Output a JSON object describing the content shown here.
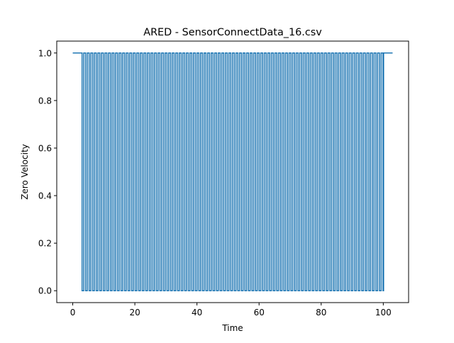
{
  "chart_data": {
    "type": "line",
    "title": "ARED - SensorConnectData_16.csv",
    "xlabel": "Time",
    "ylabel": "Zero Velocity",
    "xlim": [
      -5.15,
      108.15
    ],
    "ylim": [
      -0.05,
      1.05
    ],
    "xticks": [
      0,
      20,
      40,
      60,
      80,
      100
    ],
    "xtick_labels": [
      "0",
      "20",
      "40",
      "60",
      "80",
      "100"
    ],
    "yticks": [
      0.0,
      0.2,
      0.4,
      0.6,
      0.8,
      1.0
    ],
    "ytick_labels": [
      "0.0",
      "0.2",
      "0.4",
      "0.6",
      "0.8",
      "1.0"
    ],
    "grid": false,
    "series": [
      {
        "color": "#1f77b4",
        "signal": "binary zero-velocity flag, square wave between 0 and 1",
        "x_start": 0,
        "x_end": 103,
        "first_pulse_start": 3.0,
        "last_pulse_end": 100.1,
        "approx_period": 1.14,
        "duty_cycle": 0.52,
        "high_before_pulses": 1,
        "high_after_pulses": 1
      }
    ]
  }
}
